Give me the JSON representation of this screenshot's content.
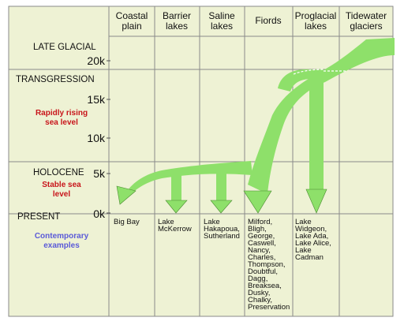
{
  "columns": [
    "Coastal\nplain",
    "Barrier\nlakes",
    "Saline\nlakes",
    "Fiords",
    "Proglacial\nlakes",
    "Tidewater\nglaciers"
  ],
  "phases": {
    "late_glacial": "LATE GLACIAL",
    "transgression": "TRANSGRESSION",
    "holocene": "HOLOCENE",
    "present": "PRESENT"
  },
  "ticks": [
    "20k",
    "15k",
    "10k",
    "5k",
    "0k"
  ],
  "notes": {
    "rising": "Rapidly rising\nsea level",
    "stable": "Stable sea\nlevel",
    "contemporary": "Contemporary\nexamples"
  },
  "examples": {
    "coastal": "Big Bay",
    "barrier": "Lake\nMcKerrow",
    "saline": "Lake\nHakapoua,\nSutherland",
    "fiords": "Milford,\nBligh,\nGeorge,\nCaswell,\nNancy,\nCharles,\nThompson,\nDoubtful,\nDagg,\nBreaksea,\nDusky,\nChalky,\nPreservation",
    "proglacial": "Lake\nWidgeon,\nLake Ada,\nLake Alice,\nLake\nCadman"
  },
  "colors": {
    "background": "#eef2d4",
    "flow": "#8ee06a",
    "note_red": "#c8151b",
    "note_blue": "#5a5ad8"
  }
}
